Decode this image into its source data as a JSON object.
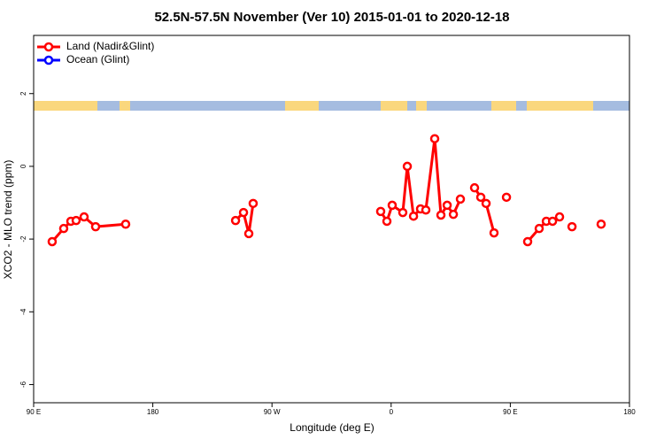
{
  "chart_data": {
    "type": "line",
    "title": "52.5N-57.5N November (Ver 10)   2015-01-01 to 2020-12-18",
    "x_label": "Longitude (deg E)",
    "y_label": "XCO2 - MLO trend (ppm)",
    "xlim": [
      90,
      540
    ],
    "xticks": [
      {
        "value": 90,
        "label": "90 E"
      },
      180,
      {
        "value": 270,
        "label": "90 W"
      },
      {
        "value": 360,
        "label": "0"
      },
      {
        "value": 450,
        "label": "90 E"
      },
      {
        "value": 540,
        "label": "180"
      }
    ],
    "ylim": [
      -6.5,
      3.6
    ],
    "yticks": [
      -6,
      -4,
      -2,
      0,
      2
    ],
    "legend": "top-left",
    "series": [
      {
        "name": "Land (Nadir&Glint)",
        "color": "#ff0000",
        "x": [
          104,
          112.7,
          118.1,
          122.1,
          128.1,
          136.8,
          159.5,
          null,
          242.5,
          248.5,
          252.5,
          255.8,
          null,
          352.1,
          356.8,
          360.8,
          368.8,
          372.2,
          376.9,
          382.2,
          386.2,
          392.9,
          397.6,
          402.3,
          407.0,
          412.3,
          null,
          423.0,
          427.7,
          431.7,
          437.7,
          null,
          447.1,
          null,
          463.1,
          471.8,
          477.2,
          481.9,
          487.2,
          null,
          496.6,
          null,
          518.6
        ],
        "values": [
          -2.07,
          -1.71,
          -1.51,
          -1.49,
          -1.39,
          -1.66,
          -1.59,
          null,
          -1.49,
          -1.27,
          -1.85,
          -1.02,
          null,
          -1.24,
          -1.51,
          -1.07,
          -1.27,
          0.0,
          -1.37,
          -1.17,
          -1.2,
          0.76,
          -1.34,
          -1.07,
          -1.32,
          -0.9,
          null,
          -0.59,
          -0.85,
          -1.02,
          -1.83,
          null,
          -0.85,
          null,
          -2.07,
          -1.71,
          -1.51,
          -1.51,
          -1.39,
          null,
          -1.66,
          null,
          -1.59
        ]
      },
      {
        "name": "Ocean (Glint)",
        "color": "#0000ff",
        "x": [],
        "values": []
      }
    ]
  }
}
